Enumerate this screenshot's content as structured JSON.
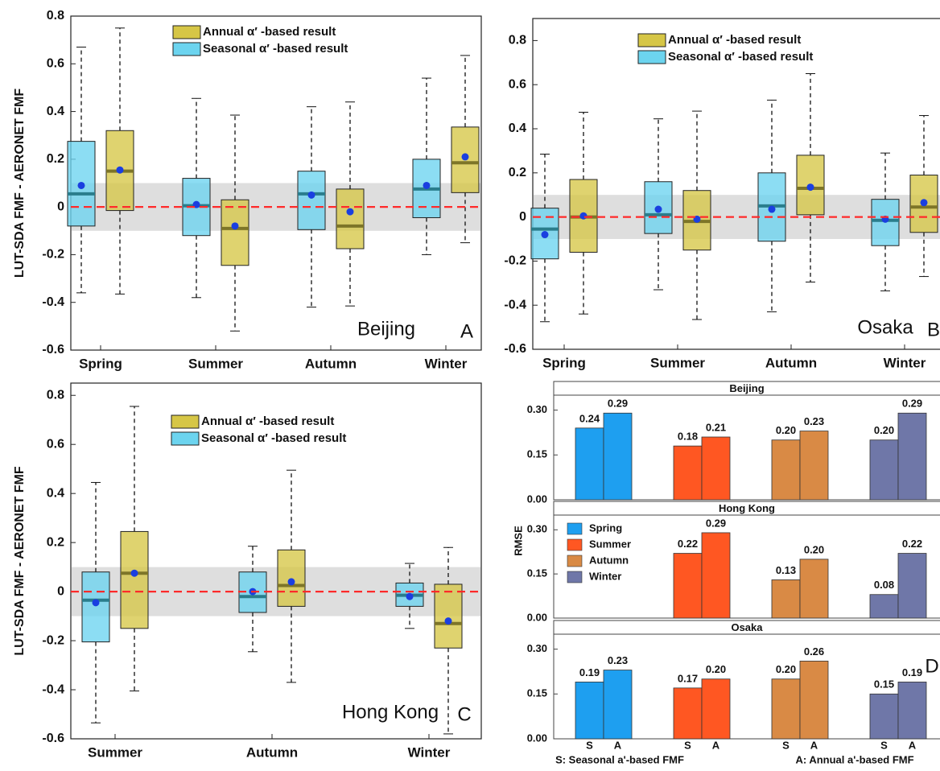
{
  "chart_data": [
    {
      "type": "box",
      "ylabel": "LUT-SDA FMF - AERONET FMF",
      "annotation": "Beijing",
      "panel_label": "A",
      "categories": [
        "Spring",
        "Summer",
        "Autumn",
        "Winter"
      ],
      "ylim": [
        -0.6,
        0.8
      ],
      "yticks": [
        0.8,
        0.6,
        0.4,
        0.2,
        0,
        -0.2,
        -0.4,
        -0.6
      ],
      "band": [
        -0.1,
        0.1
      ],
      "refline": 0,
      "refline_color": "#ff2a2a",
      "mean_color": "#1a3fe0",
      "series": [
        {
          "name": "Annual α′ -based result",
          "color": "#d6c646",
          "median_color": "#7d7528",
          "min": [
            -0.365,
            -0.52,
            -0.415,
            -0.15
          ],
          "q1": [
            -0.015,
            -0.245,
            -0.175,
            0.06
          ],
          "median": [
            0.15,
            -0.09,
            -0.08,
            0.185
          ],
          "q3": [
            0.32,
            0.03,
            0.075,
            0.335
          ],
          "max": [
            0.75,
            0.385,
            0.44,
            0.635
          ],
          "mean": [
            0.155,
            -0.08,
            -0.02,
            0.21
          ]
        },
        {
          "name": "Seasonal α′ -based result",
          "color": "#6cd4ef",
          "median_color": "#2a7d8c",
          "min": [
            -0.36,
            -0.38,
            -0.42,
            -0.2
          ],
          "q1": [
            -0.08,
            -0.12,
            -0.095,
            -0.045
          ],
          "median": [
            0.055,
            0.005,
            0.055,
            0.075
          ],
          "q3": [
            0.275,
            0.12,
            0.15,
            0.2
          ],
          "max": [
            0.67,
            0.455,
            0.42,
            0.54
          ],
          "mean": [
            0.09,
            0.01,
            0.05,
            0.09
          ]
        }
      ]
    },
    {
      "type": "box",
      "annotation": "Osaka",
      "panel_label": "B",
      "categories": [
        "Spring",
        "Summer",
        "Autumn",
        "Winter"
      ],
      "ylim": [
        -0.6,
        0.9
      ],
      "yticks": [
        0.8,
        0.6,
        0.4,
        0.2,
        0,
        -0.2,
        -0.4,
        -0.6
      ],
      "band": [
        -0.1,
        0.1
      ],
      "refline": 0,
      "refline_color": "#ff2a2a",
      "mean_color": "#1a3fe0",
      "series": [
        {
          "name": "Annual α′ -based result",
          "color": "#d6c646",
          "median_color": "#7d7528",
          "min": [
            -0.44,
            -0.465,
            -0.295,
            -0.27
          ],
          "q1": [
            -0.16,
            -0.15,
            0.01,
            -0.07
          ],
          "median": [
            0,
            -0.02,
            0.13,
            0.045
          ],
          "q3": [
            0.17,
            0.12,
            0.28,
            0.19
          ],
          "max": [
            0.475,
            0.48,
            0.65,
            0.46
          ],
          "mean": [
            0.005,
            -0.01,
            0.135,
            0.065
          ]
        },
        {
          "name": "Seasonal α′ -based result",
          "color": "#6cd4ef",
          "median_color": "#2a7d8c",
          "min": [
            -0.475,
            -0.33,
            -0.43,
            -0.335
          ],
          "q1": [
            -0.19,
            -0.075,
            -0.11,
            -0.13
          ],
          "median": [
            -0.055,
            0.01,
            0.05,
            -0.015
          ],
          "q3": [
            0.04,
            0.16,
            0.2,
            0.08
          ],
          "max": [
            0.285,
            0.445,
            0.53,
            0.29
          ],
          "mean": [
            -0.08,
            0.035,
            0.035,
            -0.01
          ]
        }
      ]
    },
    {
      "type": "box",
      "ylabel": "LUT-SDA FMF - AERONET FMF",
      "annotation": "Hong Kong",
      "panel_label": "C",
      "categories": [
        "Summer",
        "Autumn",
        "Winter"
      ],
      "ylim": [
        -0.6,
        0.85
      ],
      "yticks": [
        0.8,
        0.6,
        0.4,
        0.2,
        0,
        -0.2,
        -0.4,
        -0.6
      ],
      "band": [
        -0.1,
        0.1
      ],
      "refline": 0,
      "refline_color": "#ff2a2a",
      "mean_color": "#1a3fe0",
      "series": [
        {
          "name": "Annual α′ -based result",
          "color": "#d6c646",
          "median_color": "#7d7528",
          "min": [
            -0.405,
            -0.37,
            -0.58
          ],
          "q1": [
            -0.15,
            -0.06,
            -0.23
          ],
          "median": [
            0.075,
            0.025,
            -0.13
          ],
          "q3": [
            0.245,
            0.17,
            0.03
          ],
          "max": [
            0.755,
            0.495,
            0.18
          ],
          "mean": [
            0.075,
            0.04,
            -0.12
          ]
        },
        {
          "name": "Seasonal α′ -based result",
          "color": "#6cd4ef",
          "median_color": "#2a7d8c",
          "min": [
            -0.535,
            -0.245,
            -0.15
          ],
          "q1": [
            -0.205,
            -0.085,
            -0.06
          ],
          "median": [
            -0.035,
            -0.02,
            -0.015
          ],
          "q3": [
            0.08,
            0.08,
            0.035
          ],
          "max": [
            0.445,
            0.185,
            0.115
          ],
          "mean": [
            -0.045,
            0,
            -0.02
          ]
        }
      ]
    },
    {
      "type": "faceted-bar",
      "ylabel": "RMSE",
      "panel_label": "D",
      "categories": [
        "Spring",
        "Summer",
        "Autumn",
        "Winter"
      ],
      "colors": [
        "#1e9ff0",
        "#ff5722",
        "#d98a45",
        "#6f77a8"
      ],
      "bar_labels": [
        "S",
        "A"
      ],
      "xlabels": [
        "S: Seasonal a'-based FMF",
        "A: Annual a'-based FMF"
      ],
      "ylim": [
        0,
        0.35
      ],
      "yticks": [
        {
          "value": 0,
          "label": "0.00"
        },
        {
          "value": 0.15,
          "label": "0.15"
        },
        {
          "value": 0.3,
          "label": "0.30"
        }
      ],
      "facets": [
        {
          "title": "Beijing",
          "series": [
            {
              "values": [
                0.24,
                0.18,
                0.2,
                0.2
              ],
              "value_labels": [
                "0.24",
                "0.18",
                "0.20",
                "0.20"
              ]
            },
            {
              "values": [
                0.29,
                0.21,
                0.23,
                0.29
              ],
              "value_labels": [
                "0.29",
                "0.21",
                "0.23",
                "0.29"
              ]
            }
          ]
        },
        {
          "title": "Hong Kong",
          "series": [
            {
              "values": [
                null,
                0.22,
                0.13,
                0.08
              ],
              "value_labels": [
                null,
                "0.22",
                "0.13",
                "0.08"
              ]
            },
            {
              "values": [
                null,
                0.29,
                0.2,
                0.22
              ],
              "value_labels": [
                null,
                "0.29",
                "0.20",
                "0.22"
              ]
            }
          ]
        },
        {
          "title": "Osaka",
          "series": [
            {
              "values": [
                0.19,
                0.17,
                0.2,
                0.15
              ],
              "value_labels": [
                "0.19",
                "0.17",
                "0.20",
                "0.15"
              ]
            },
            {
              "values": [
                0.23,
                0.2,
                0.26,
                0.19
              ],
              "value_labels": [
                "0.23",
                "0.20",
                "0.26",
                "0.19"
              ]
            }
          ]
        }
      ]
    }
  ]
}
